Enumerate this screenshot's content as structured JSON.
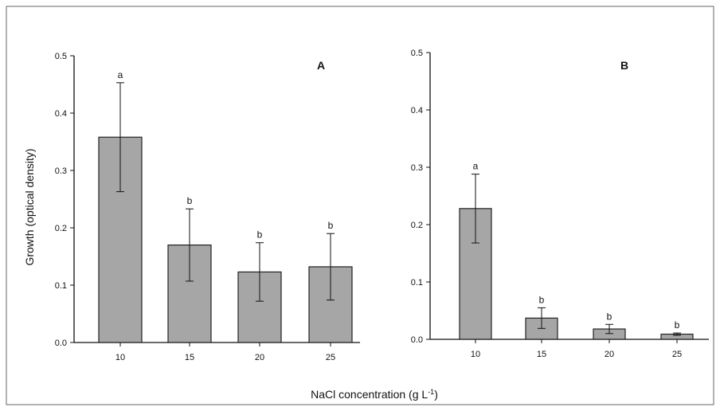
{
  "colors": {
    "bar_fill": "#a6a6a6",
    "bar_stroke": "#222222",
    "axis": "#111111",
    "frame": "#666666"
  },
  "shared": {
    "ylabel": "Growth (optical density)",
    "xlabel": "NaCl concentration (g L",
    "xlabel_sup": "-1",
    "xlabel_close": ")"
  },
  "chart_data": [
    {
      "type": "bar",
      "label": "A",
      "categories": [
        "10",
        "15",
        "20",
        "25"
      ],
      "values": [
        0.358,
        0.17,
        0.123,
        0.132
      ],
      "errors": [
        0.095,
        0.063,
        0.051,
        0.058
      ],
      "significance": [
        "a",
        "b",
        "b",
        "b"
      ],
      "ylim": [
        0,
        0.5
      ],
      "yticks": [
        "0.0",
        "0.1",
        "0.2",
        "0.3",
        "0.4",
        "0.5"
      ]
    },
    {
      "type": "bar",
      "label": "B",
      "categories": [
        "10",
        "15",
        "20",
        "25"
      ],
      "values": [
        0.228,
        0.037,
        0.018,
        0.009
      ],
      "errors": [
        0.06,
        0.018,
        0.008,
        0.002
      ],
      "significance": [
        "a",
        "b",
        "b",
        "b"
      ],
      "ylim": [
        0,
        0.5
      ],
      "yticks": [
        "0.0",
        "0.1",
        "0.2",
        "0.3",
        "0.4",
        "0.5"
      ]
    }
  ]
}
